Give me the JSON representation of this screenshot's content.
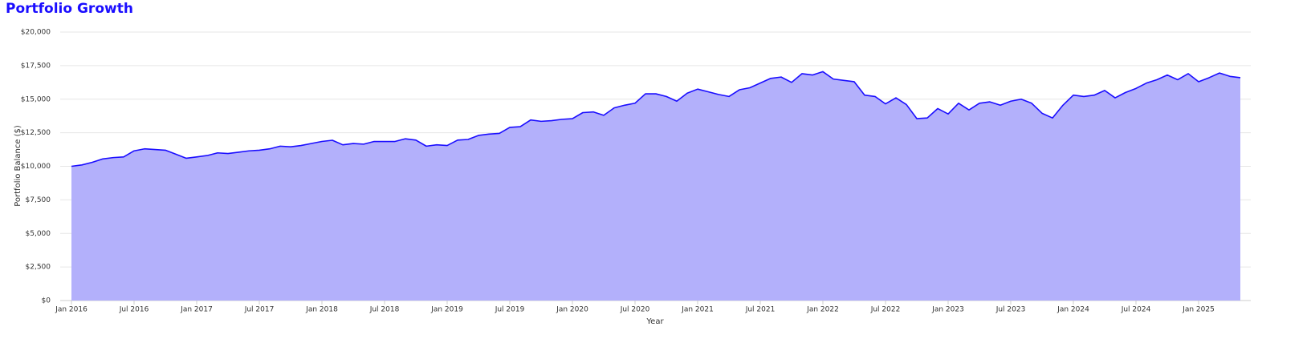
{
  "chart_data": {
    "type": "area",
    "title": "Portfolio Growth",
    "x_label": "Year",
    "y_label": "Portfolio Balance ($)",
    "x": [
      "2016-01",
      "2016-02",
      "2016-03",
      "2016-04",
      "2016-05",
      "2016-06",
      "2016-07",
      "2016-08",
      "2016-09",
      "2016-10",
      "2016-11",
      "2016-12",
      "2017-01",
      "2017-02",
      "2017-03",
      "2017-04",
      "2017-05",
      "2017-06",
      "2017-07",
      "2017-08",
      "2017-09",
      "2017-10",
      "2017-11",
      "2017-12",
      "2018-01",
      "2018-02",
      "2018-03",
      "2018-04",
      "2018-05",
      "2018-06",
      "2018-07",
      "2018-08",
      "2018-09",
      "2018-10",
      "2018-11",
      "2018-12",
      "2019-01",
      "2019-02",
      "2019-03",
      "2019-04",
      "2019-05",
      "2019-06",
      "2019-07",
      "2019-08",
      "2019-09",
      "2019-10",
      "2019-11",
      "2019-12",
      "2020-01",
      "2020-02",
      "2020-03",
      "2020-04",
      "2020-05",
      "2020-06",
      "2020-07",
      "2020-08",
      "2020-09",
      "2020-10",
      "2020-11",
      "2020-12",
      "2021-01",
      "2021-02",
      "2021-03",
      "2021-04",
      "2021-05",
      "2021-06",
      "2021-07",
      "2021-08",
      "2021-09",
      "2021-10",
      "2021-11",
      "2021-12",
      "2022-01",
      "2022-02",
      "2022-03",
      "2022-04",
      "2022-05",
      "2022-06",
      "2022-07",
      "2022-08",
      "2022-09",
      "2022-10",
      "2022-11",
      "2022-12",
      "2023-01",
      "2023-02",
      "2023-03",
      "2023-04",
      "2023-05",
      "2023-06",
      "2023-07",
      "2023-08",
      "2023-09",
      "2023-10",
      "2023-11",
      "2023-12",
      "2024-01",
      "2024-02",
      "2024-03",
      "2024-04",
      "2024-05",
      "2024-06",
      "2024-07",
      "2024-08",
      "2024-09",
      "2024-10",
      "2024-11",
      "2024-12",
      "2025-01",
      "2025-02",
      "2025-03",
      "2025-04",
      "2025-05"
    ],
    "series": [
      {
        "name": "Portfolio Balance",
        "color": "#1a0dff",
        "fill": "#b3b0fb",
        "values": [
          10000,
          10100,
          10300,
          10550,
          10650,
          10700,
          11150,
          11300,
          11250,
          11200,
          10900,
          10600,
          10700,
          10800,
          11000,
          10950,
          11050,
          11150,
          11200,
          11300,
          11500,
          11450,
          11550,
          11700,
          11850,
          11940,
          11600,
          11700,
          11650,
          11850,
          11850,
          11850,
          12050,
          11950,
          11500,
          11600,
          11550,
          11950,
          12000,
          12300,
          12400,
          12450,
          12900,
          12950,
          13450,
          13350,
          13400,
          13500,
          13550,
          14000,
          14050,
          13800,
          14350,
          14550,
          14700,
          15400,
          15400,
          15200,
          14850,
          15450,
          15750,
          15550,
          15350,
          15200,
          15700,
          15850,
          16200,
          16550,
          16650,
          16250,
          16900,
          16800,
          17050,
          16500,
          16400,
          16300,
          15300,
          15200,
          14650,
          15100,
          14600,
          13550,
          13600,
          14300,
          13900,
          14700,
          14200,
          14700,
          14800,
          14550,
          14850,
          15000,
          14700,
          13950,
          13600,
          14550,
          15300,
          15200,
          15300,
          15650,
          15100,
          15500,
          15800,
          16200,
          16450,
          16800,
          16450,
          16900,
          16300,
          16600,
          16950,
          16700,
          16600
        ]
      }
    ],
    "ylim": [
      0,
      20000
    ],
    "yticks": [
      {
        "value": 0,
        "label": "$0"
      },
      {
        "value": 2500,
        "label": "$2,500"
      },
      {
        "value": 5000,
        "label": "$5,000"
      },
      {
        "value": 7500,
        "label": "$7,500"
      },
      {
        "value": 10000,
        "label": "$10,000"
      },
      {
        "value": 12500,
        "label": "$12,500"
      },
      {
        "value": 15000,
        "label": "$15,000"
      },
      {
        "value": 17500,
        "label": "$17,500"
      },
      {
        "value": 20000,
        "label": "$20,000"
      }
    ],
    "xticks": [
      {
        "value": "2016-01",
        "label": "Jan 2016"
      },
      {
        "value": "2016-07",
        "label": "Jul 2016"
      },
      {
        "value": "2017-01",
        "label": "Jan 2017"
      },
      {
        "value": "2017-07",
        "label": "Jul 2017"
      },
      {
        "value": "2018-01",
        "label": "Jan 2018"
      },
      {
        "value": "2018-07",
        "label": "Jul 2018"
      },
      {
        "value": "2019-01",
        "label": "Jan 2019"
      },
      {
        "value": "2019-07",
        "label": "Jul 2019"
      },
      {
        "value": "2020-01",
        "label": "Jan 2020"
      },
      {
        "value": "2020-07",
        "label": "Jul 2020"
      },
      {
        "value": "2021-01",
        "label": "Jan 2021"
      },
      {
        "value": "2021-07",
        "label": "Jul 2021"
      },
      {
        "value": "2022-01",
        "label": "Jan 2022"
      },
      {
        "value": "2022-07",
        "label": "Jul 2022"
      },
      {
        "value": "2023-01",
        "label": "Jan 2023"
      },
      {
        "value": "2023-07",
        "label": "Jul 2023"
      },
      {
        "value": "2024-01",
        "label": "Jan 2024"
      },
      {
        "value": "2024-07",
        "label": "Jul 2024"
      },
      {
        "value": "2025-01",
        "label": "Jan 2025"
      }
    ],
    "grid": true
  }
}
